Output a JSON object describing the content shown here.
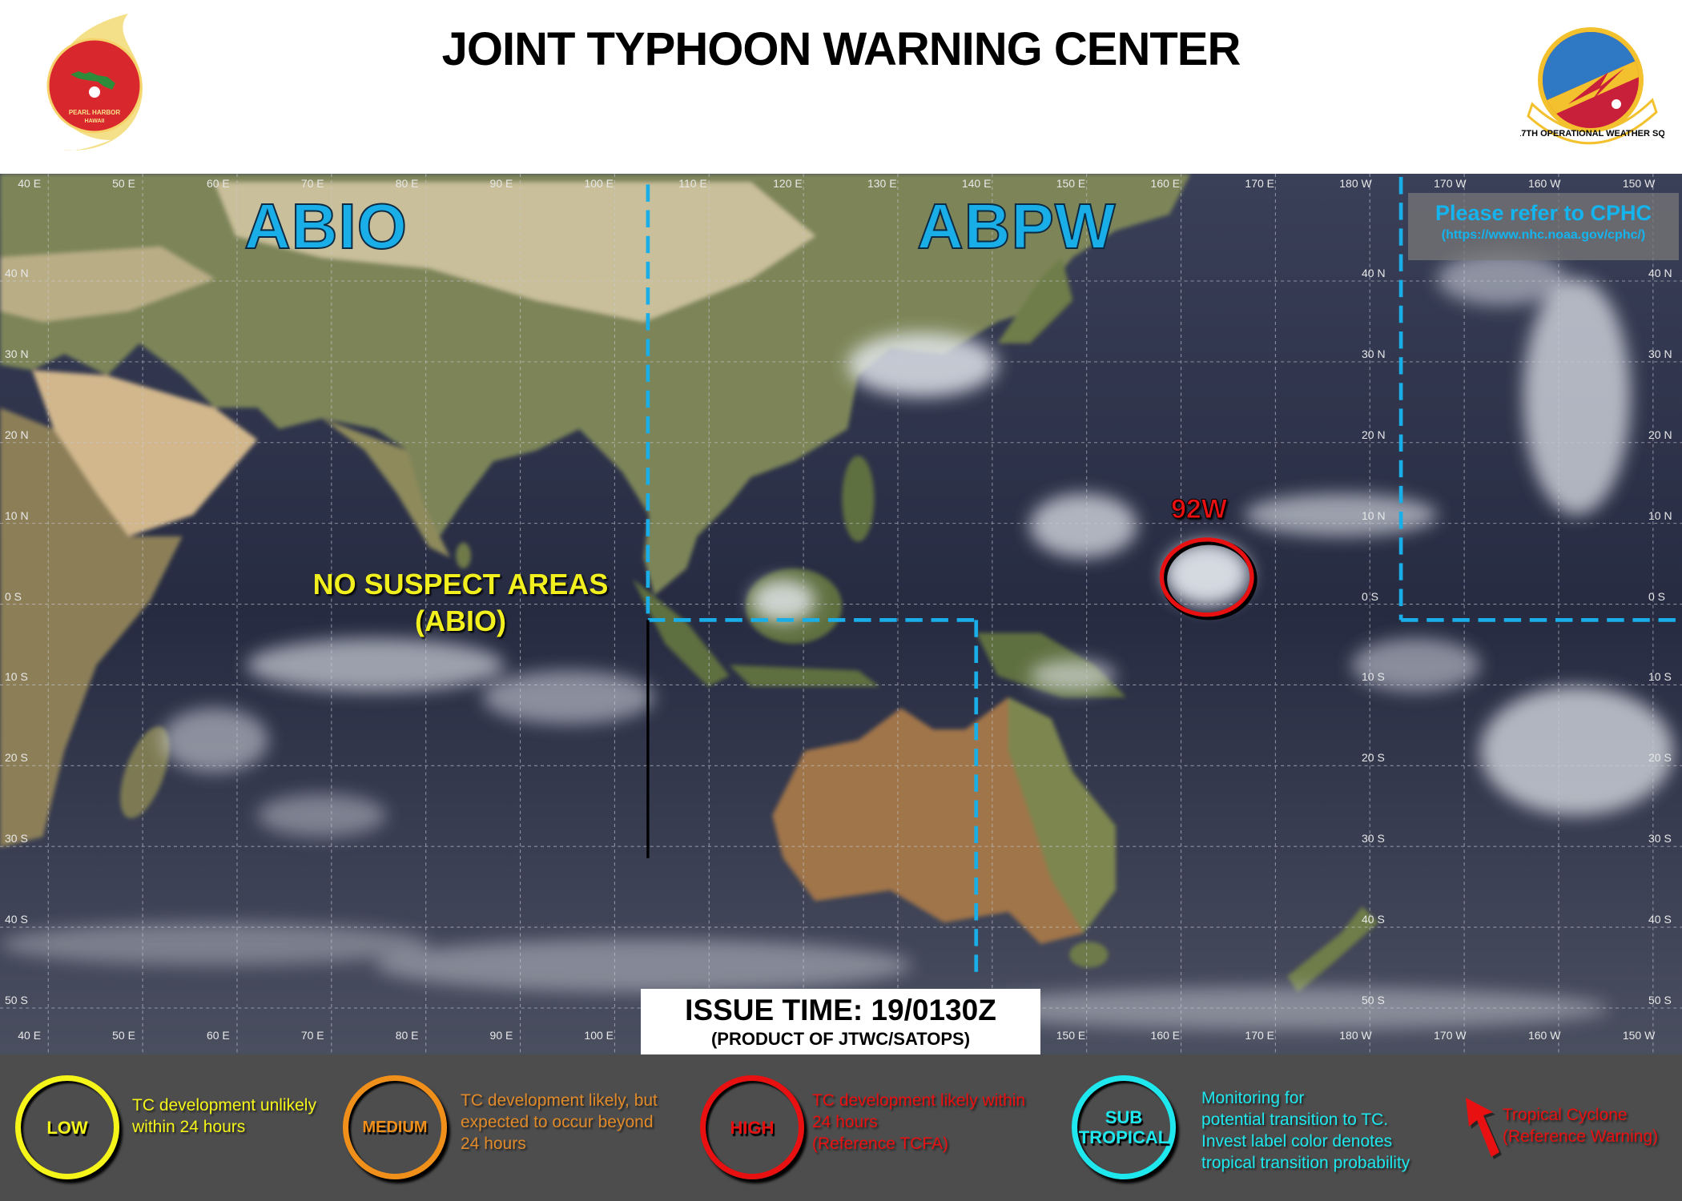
{
  "header": {
    "title": "JOINT TYPHOON WARNING CENTER",
    "left_logo": {
      "icon": "jtwc-seal-logo",
      "text": "JOINT TYPHOON WARNING CENTER PEARL HARBOR HAWAII"
    },
    "right_logo": {
      "icon": "17th-operational-weather-sq-patch",
      "text": "17TH OPERATIONAL WEATHER SQ"
    }
  },
  "map": {
    "regions": {
      "west": "ABIO",
      "east": "ABPW"
    },
    "cphc_note": {
      "title": "Please refer to CPHC",
      "url": "(https://www.nhc.noaa.gov/cphc/)"
    },
    "no_suspect": {
      "line1": "NO SUSPECT AREAS",
      "line2": "(ABIO)"
    },
    "invest": {
      "label": "92W",
      "probability": "HIGH",
      "color": "#e81010"
    },
    "longitude_labels": [
      "40 E",
      "50 E",
      "60 E",
      "70 E",
      "80 E",
      "90 E",
      "100 E",
      "110 E",
      "120 E",
      "130 E",
      "140 E",
      "150 E",
      "160 E",
      "170 E",
      "180 W",
      "170 W",
      "160 W",
      "150 W"
    ],
    "latitude_labels": [
      "40 N",
      "30 N",
      "20 N",
      "10 N",
      "0 S",
      "10 S",
      "20 S",
      "30 S",
      "40 S",
      "50 S"
    ],
    "boundary_color": "#19aee8"
  },
  "issue": {
    "time": "ISSUE TIME: 19/0130Z",
    "source": "(PRODUCT OF JTWC/SATOPS)"
  },
  "legend": {
    "low": {
      "label": "LOW",
      "text1": "TC development  unlikely",
      "text2": "within  24 hours",
      "color": "#f5f51a"
    },
    "medium": {
      "label": "MEDIUM",
      "text1": "TC development  likely,  but",
      "text2": "expected to occur beyond",
      "text3": "24 hours",
      "color": "#f0901a"
    },
    "high": {
      "label": "HIGH",
      "text1": "TC development  likely within",
      "text2": "24 hours",
      "text3": "(Reference TCFA)",
      "color": "#e81010"
    },
    "subtropical": {
      "label1": "SUB",
      "label2": "TROPICAL",
      "text1": "Monitoring  for",
      "text2": "potential  transition to TC.",
      "text3": "Invest label color denotes",
      "text4": "tropical transition  probability",
      "color": "#1ee8ee"
    },
    "warning": {
      "icon": "red-arrow-icon",
      "text1": "Tropical Cyclone",
      "text2": "(Reference Warning)",
      "color": "#e81010"
    }
  }
}
